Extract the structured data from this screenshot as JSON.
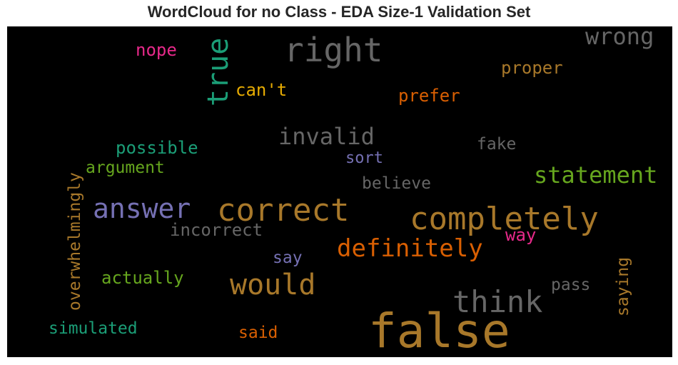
{
  "title": "WordCloud for no Class - EDA Size-1 Validation Set",
  "colors": {
    "background": "#000000",
    "title": "#262626"
  },
  "words": {
    "false": {
      "text": "false",
      "color": "#a8782a"
    },
    "right": {
      "text": "right",
      "color": "#666666"
    },
    "completely": {
      "text": "completely",
      "color": "#a8782a"
    },
    "correct": {
      "text": "correct",
      "color": "#a8782a"
    },
    "answer": {
      "text": "answer",
      "color": "#7570b3"
    },
    "think": {
      "text": "think",
      "color": "#666666"
    },
    "would": {
      "text": "would",
      "color": "#a8782a"
    },
    "definitely": {
      "text": "definitely",
      "color": "#d95f02"
    },
    "statement": {
      "text": "statement",
      "color": "#66a61e"
    },
    "invalid": {
      "text": "invalid",
      "color": "#666666"
    },
    "true": {
      "text": "true",
      "color": "#1b9e77"
    },
    "wrong": {
      "text": "wrong",
      "color": "#666666"
    },
    "incorrect": {
      "text": "incorrect",
      "color": "#666666"
    },
    "overwhelmingly": {
      "text": "overwhelmingly",
      "color": "#a8782a"
    },
    "saying": {
      "text": "saying",
      "color": "#a8782a"
    },
    "simulated": {
      "text": "simulated",
      "color": "#1b9e77"
    },
    "actually": {
      "text": "actually",
      "color": "#66a61e"
    },
    "possible": {
      "text": "possible",
      "color": "#1b9e77"
    },
    "argument": {
      "text": "argument",
      "color": "#66a61e"
    },
    "believe": {
      "text": "believe",
      "color": "#666666"
    },
    "proper": {
      "text": "proper",
      "color": "#a8782a"
    },
    "prefer": {
      "text": "prefer",
      "color": "#d95f02"
    },
    "cant": {
      "text": "can't",
      "color": "#e6ab02"
    },
    "nope": {
      "text": "nope",
      "color": "#e7298a"
    },
    "fake": {
      "text": "fake",
      "color": "#666666"
    },
    "sort": {
      "text": "sort",
      "color": "#7570b3"
    },
    "way": {
      "text": "way",
      "color": "#e7298a"
    },
    "say": {
      "text": "say",
      "color": "#7570b3"
    },
    "pass": {
      "text": "pass",
      "color": "#666666"
    },
    "said": {
      "text": "said",
      "color": "#d95f02"
    }
  }
}
